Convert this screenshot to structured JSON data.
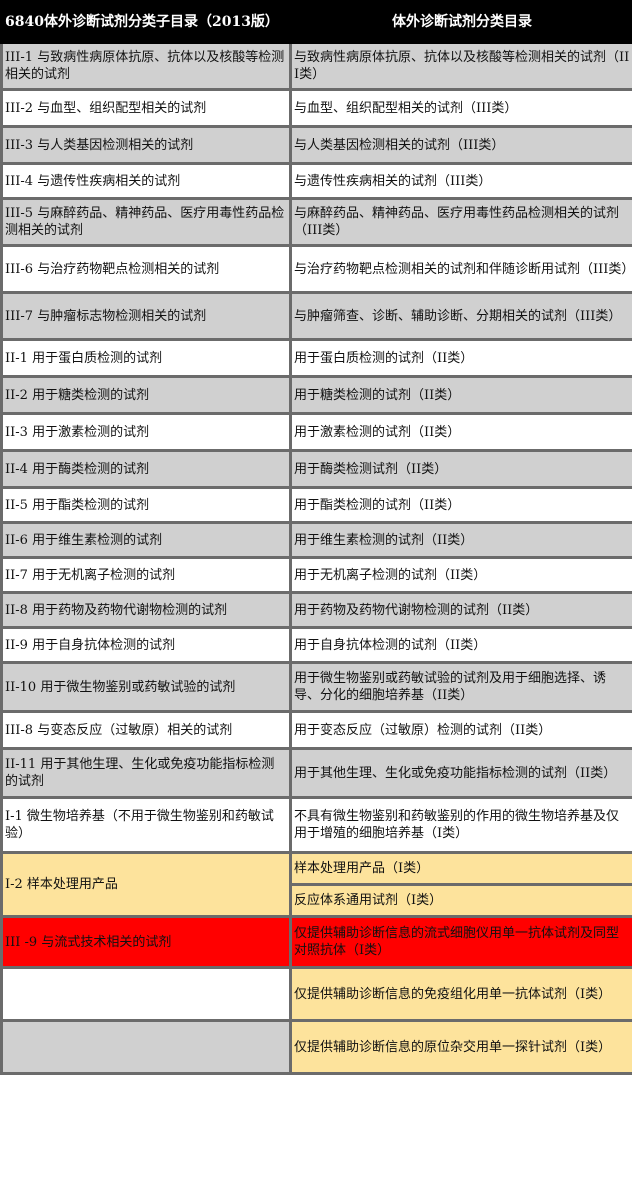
{
  "header": {
    "col1": "6840体外诊断试剂分类子目录（2013版）",
    "col2": "体外诊断试剂分类目录"
  },
  "colors": {
    "gray": "#d0d0d0",
    "yellow": "#fde39c",
    "red": "#ff0000",
    "header": "#000000"
  },
  "rows": [
    {
      "left": "III-1 与致病性病原体抗原、抗体以及核酸等检测相关的试剂",
      "right": "与致病性病原体抗原、抗体以及核酸等检测相关的试剂（III类）",
      "bg": "gray"
    },
    {
      "left": "III-2 与血型、组织配型相关的试剂",
      "right": "与血型、组织配型相关的试剂（III类）",
      "bg": "white"
    },
    {
      "left": "III-3 与人类基因检测相关的试剂",
      "right": "与人类基因检测相关的试剂（III类）",
      "bg": "gray"
    },
    {
      "left": "III-4 与遗传性疾病相关的试剂",
      "right": "与遗传性疾病相关的试剂（III类）",
      "bg": "white"
    },
    {
      "left": "III-5 与麻醉药品、精神药品、医疗用毒性药品检测相关的试剂",
      "right": "与麻醉药品、精神药品、医疗用毒性药品检测相关的试剂（III类）",
      "bg": "gray"
    },
    {
      "left": "III-6 与治疗药物靶点检测相关的试剂",
      "right": "与治疗药物靶点检测相关的试剂和伴随诊断用试剂（III类）",
      "bg": "white"
    },
    {
      "left": "III-7 与肿瘤标志物检测相关的试剂",
      "right": "与肿瘤筛查、诊断、辅助诊断、分期相关的试剂（III类）",
      "bg": "gray"
    },
    {
      "left": "II-1 用于蛋白质检测的试剂",
      "right": "用于蛋白质检测的试剂（II类）",
      "bg": "white"
    },
    {
      "left": "II-2 用于糖类检测的试剂",
      "right": "用于糖类检测的试剂（II类）",
      "bg": "gray"
    },
    {
      "left": "II-3 用于激素检测的试剂",
      "right": "用于激素检测的试剂（II类）",
      "bg": "white"
    },
    {
      "left": "II-4 用于酶类检测的试剂",
      "right": "用于酶类检测试剂（II类）",
      "bg": "gray"
    },
    {
      "left": "II-5 用于酯类检测的试剂",
      "right": "用于酯类检测的试剂（II类）",
      "bg": "white"
    },
    {
      "left": "II-6 用于维生素检测的试剂",
      "right": "用于维生素检测的试剂（II类）",
      "bg": "gray"
    },
    {
      "left": "II-7 用于无机离子检测的试剂",
      "right": "用于无机离子检测的试剂（II类）",
      "bg": "white"
    },
    {
      "left": "II-8 用于药物及药物代谢物检测的试剂",
      "right": "用于药物及药物代谢物检测的试剂（II类）",
      "bg": "gray"
    },
    {
      "left": "II-9 用于自身抗体检测的试剂",
      "right": "用于自身抗体检测的试剂（II类）",
      "bg": "white"
    },
    {
      "left": "II-10 用于微生物鉴别或药敏试验的试剂",
      "right": "用于微生物鉴别或药敏试验的试剂及用于细胞选择、诱导、分化的细胞培养基（II类）",
      "bg": "gray"
    },
    {
      "left": "III-8 与变态反应（过敏原）相关的试剂",
      "right": "用于变态反应（过敏原）检测的试剂（II类）",
      "bg": "white"
    },
    {
      "left": "II-11 用于其他生理、生化或免疫功能指标检测的试剂",
      "right": "用于其他生理、生化或免疫功能指标检测的试剂（II类）",
      "bg": "gray"
    },
    {
      "left": "I-1 微生物培养基（不用于微生物鉴别和药敏试验）",
      "right": "不具有微生物鉴别和药敏鉴别的作用的微生物培养基及仅用于增殖的细胞培养基（I类）",
      "bg": "white"
    }
  ],
  "i2": {
    "left": "I-2 样本处理用产品",
    "right1": "样本处理用产品（I类）",
    "right2": "反应体系通用试剂（I类）"
  },
  "iii9": {
    "left": "III -9 与流式技术相关的试剂",
    "right": "仅提供辅助诊断信息的流式细胞仪用单一抗体试剂及同型对照抗体（I类）"
  },
  "extra": [
    {
      "left": "",
      "right": "仅提供辅助诊断信息的免疫组化用单一抗体试剂（I类）",
      "leftbg": "white"
    },
    {
      "left": "",
      "right": "仅提供辅助诊断信息的原位杂交用单一探针试剂（I类）",
      "leftbg": "gray"
    }
  ]
}
